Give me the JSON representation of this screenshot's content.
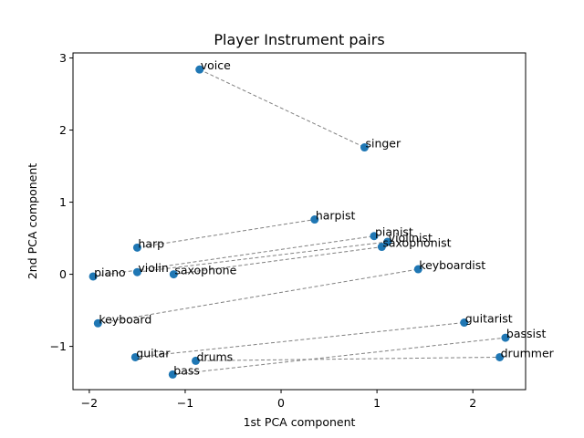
{
  "chart_data": {
    "type": "scatter",
    "title": "Player Instrument pairs",
    "xlabel": "1st PCA component",
    "ylabel": "2nd PCA component",
    "xlim": [
      -2.17,
      2.55
    ],
    "ylim": [
      -1.6,
      3.07
    ],
    "xticks": [
      -2,
      -1,
      0,
      1,
      2
    ],
    "yticks": [
      -1,
      0,
      1,
      2,
      3
    ],
    "colors": {
      "point": "#1f77b4",
      "line": "#808080"
    },
    "points": [
      {
        "label": "voice",
        "x": -0.85,
        "y": 2.84
      },
      {
        "label": "singer",
        "x": 0.87,
        "y": 1.76
      },
      {
        "label": "harpist",
        "x": 0.35,
        "y": 0.76
      },
      {
        "label": "pianist",
        "x": 0.97,
        "y": 0.53
      },
      {
        "label": "violinist",
        "x": 1.11,
        "y": 0.45
      },
      {
        "label": "saxophonist",
        "x": 1.05,
        "y": 0.38
      },
      {
        "label": "keyboardist",
        "x": 1.43,
        "y": 0.07
      },
      {
        "label": "harp",
        "x": -1.5,
        "y": 0.37
      },
      {
        "label": "violin",
        "x": -1.5,
        "y": 0.03
      },
      {
        "label": "saxophone",
        "x": -1.12,
        "y": 0.0
      },
      {
        "label": "piano",
        "x": -1.96,
        "y": -0.03
      },
      {
        "label": "keyboard",
        "x": -1.91,
        "y": -0.68
      },
      {
        "label": "guitarist",
        "x": 1.91,
        "y": -0.67
      },
      {
        "label": "bassist",
        "x": 2.34,
        "y": -0.88
      },
      {
        "label": "drummer",
        "x": 2.28,
        "y": -1.15
      },
      {
        "label": "guitar",
        "x": -1.52,
        "y": -1.15
      },
      {
        "label": "drums",
        "x": -0.89,
        "y": -1.2
      },
      {
        "label": "bass",
        "x": -1.13,
        "y": -1.39
      }
    ],
    "pairs": [
      [
        "voice",
        "singer"
      ],
      [
        "harp",
        "harpist"
      ],
      [
        "piano",
        "pianist"
      ],
      [
        "violin",
        "violinist"
      ],
      [
        "saxophone",
        "saxophonist"
      ],
      [
        "keyboard",
        "keyboardist"
      ],
      [
        "guitar",
        "guitarist"
      ],
      [
        "bass",
        "bassist"
      ],
      [
        "drums",
        "drummer"
      ]
    ]
  }
}
